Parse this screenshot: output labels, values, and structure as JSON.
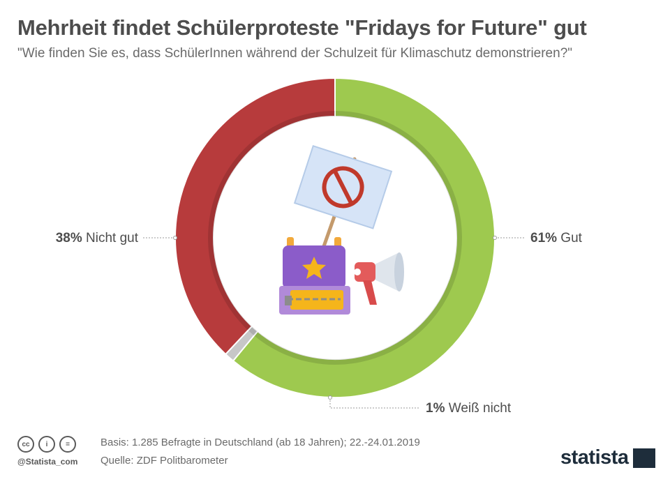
{
  "header": {
    "title": "Mehrheit findet Schülerproteste \"Fridays for Future\" gut",
    "subtitle": "\"Wie finden Sie es, dass SchülerInnen während der Schulzeit für Klimaschutz demonstrieren?\""
  },
  "chart_data": {
    "type": "pie",
    "variant": "donut",
    "slices": [
      {
        "label": "Gut",
        "value": 61,
        "display": "61%",
        "color": "#9ec94f"
      },
      {
        "label": "Weiß nicht",
        "value": 1,
        "display": "1%",
        "color": "#c7c7c7"
      },
      {
        "label": "Nicht gut",
        "value": 38,
        "display": "38%",
        "color": "#b73b3c"
      }
    ]
  },
  "footer": {
    "basis": "Basis: 1.285 Befragte in Deutschland (ab 18 Jahren); 22.-24.01.2019",
    "source": "Quelle: ZDF Politbarometer",
    "handle": "@Statista_com",
    "logo": "statista",
    "license_icons": [
      "cc-icon",
      "attribution-icon",
      "no-derivatives-icon"
    ]
  }
}
